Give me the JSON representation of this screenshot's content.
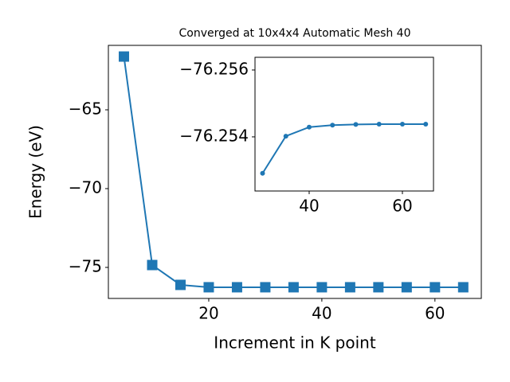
{
  "chart_data": [
    {
      "type": "line",
      "title": "Converged at 10x4x4 Automatic Mesh 40",
      "x_label": "Increment in K point",
      "y_label": "Energy (eV)",
      "x": [
        5,
        10,
        15,
        20,
        25,
        30,
        35,
        40,
        45,
        50,
        55,
        60,
        65
      ],
      "series": [
        {
          "color": "#1f77b4",
          "marker": "square",
          "values": [
            -61.62,
            -74.85,
            -76.11,
            -76.26,
            -76.26,
            -76.26,
            -76.26,
            -76.26,
            -76.26,
            -76.26,
            -76.26,
            -76.26,
            -76.26
          ]
        }
      ],
      "xlim": [
        2.25,
        68.2
      ],
      "ylim": [
        -76.97,
        -60.91
      ],
      "xticks": [
        20,
        40,
        60
      ],
      "yticks": [
        {
          "value": -75,
          "label": "−75"
        },
        {
          "value": -70,
          "label": "−70"
        },
        {
          "value": -65,
          "label": "−65"
        }
      ]
    },
    {
      "type": "line",
      "x": [
        30,
        35,
        40,
        45,
        50,
        55,
        60,
        65
      ],
      "series": [
        {
          "color": "#1f77b4",
          "marker": "circle",
          "values": [
            -76.25291,
            -76.25402,
            -76.25429,
            -76.25435,
            -76.25437,
            -76.25438,
            -76.25438,
            -76.25438
          ]
        }
      ],
      "xlim": [
        28.38,
        66.67
      ],
      "ylim": [
        -76.25238,
        -76.25638
      ],
      "xticks": [
        40,
        60
      ],
      "yticks": [
        {
          "value": -76.254,
          "label": "−76.254"
        },
        {
          "value": -76.256,
          "label": "−76.256"
        }
      ]
    }
  ]
}
